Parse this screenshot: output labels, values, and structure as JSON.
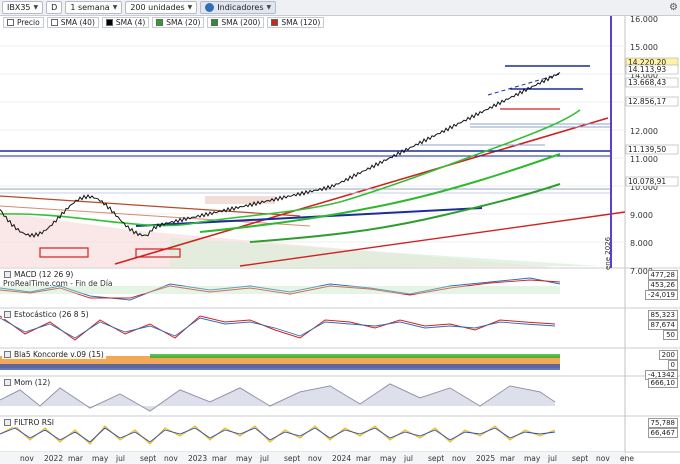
{
  "toolbar": {
    "symbol": "IBX35",
    "letter": "D",
    "period": "1 semana",
    "units": "200 unidades",
    "indicators": "Indicadores"
  },
  "legend": [
    {
      "label": "Precio",
      "color": "#ffffff"
    },
    {
      "label": "SMA (40)",
      "color": "#ffffff"
    },
    {
      "label": "SMA (4)",
      "color": "#000000"
    },
    {
      "label": "SMA (20)",
      "color": "#2f9e2f"
    },
    {
      "label": "SMA (200)",
      "color": "#2d8f2d"
    },
    {
      "label": "SMA (120)",
      "color": "#d32020"
    }
  ],
  "price_axis": {
    "ticks": [
      "16.000",
      "15.000",
      "14.000",
      "13.000",
      "12.000",
      "11.000",
      "10.000",
      "9.000",
      "8.000",
      "7.000"
    ],
    "badges": [
      {
        "text": "14.220,20",
        "bg": "#fff3a6"
      },
      {
        "text": "14.113,93",
        "bg": "#ffffff"
      },
      {
        "text": "13.668,43",
        "bg": "#ffffff"
      },
      {
        "text": "12.856,17",
        "bg": "#ffffff"
      },
      {
        "text": "11.139,50",
        "bg": "#ffffff"
      },
      {
        "text": "10.078,91",
        "bg": "#ffffff"
      }
    ]
  },
  "overlay": {
    "source": "ProRealTime.com - Fin de Día",
    "year_label": "ene 2026"
  },
  "panes": [
    {
      "title": "MACD (12 26 9)",
      "values": [
        "477,28",
        "453,26",
        "-24,019"
      ]
    },
    {
      "title": "Estocástico (26 8 5)",
      "values": [
        "85,323",
        "87,674",
        "50"
      ]
    },
    {
      "title": "Bla5 Koncorde v.09 (15)",
      "values": [
        "200",
        "0",
        "-4,1342"
      ]
    },
    {
      "title": "Mom (12)",
      "values": [
        "666,10"
      ]
    },
    {
      "title": "FILTRO RSI",
      "values": [
        "75,788",
        "66,467"
      ]
    }
  ],
  "time_axis": [
    "nov",
    "2022",
    "mar",
    "may",
    "jul",
    "sept",
    "nov",
    "2023",
    "mar",
    "may",
    "jul",
    "sept",
    "nov",
    "2024",
    "mar",
    "may",
    "jul",
    "sept",
    "nov",
    "2025",
    "mar",
    "may",
    "jul",
    "sept",
    "nov",
    "ene"
  ],
  "colors": {
    "price_line": "#000000",
    "sma20": "#33c033",
    "sma120": "#d32020",
    "sma200": "#2d9e2d",
    "blue_level": "#1a2d9b",
    "accent_purple": "#5a3fd0"
  }
}
